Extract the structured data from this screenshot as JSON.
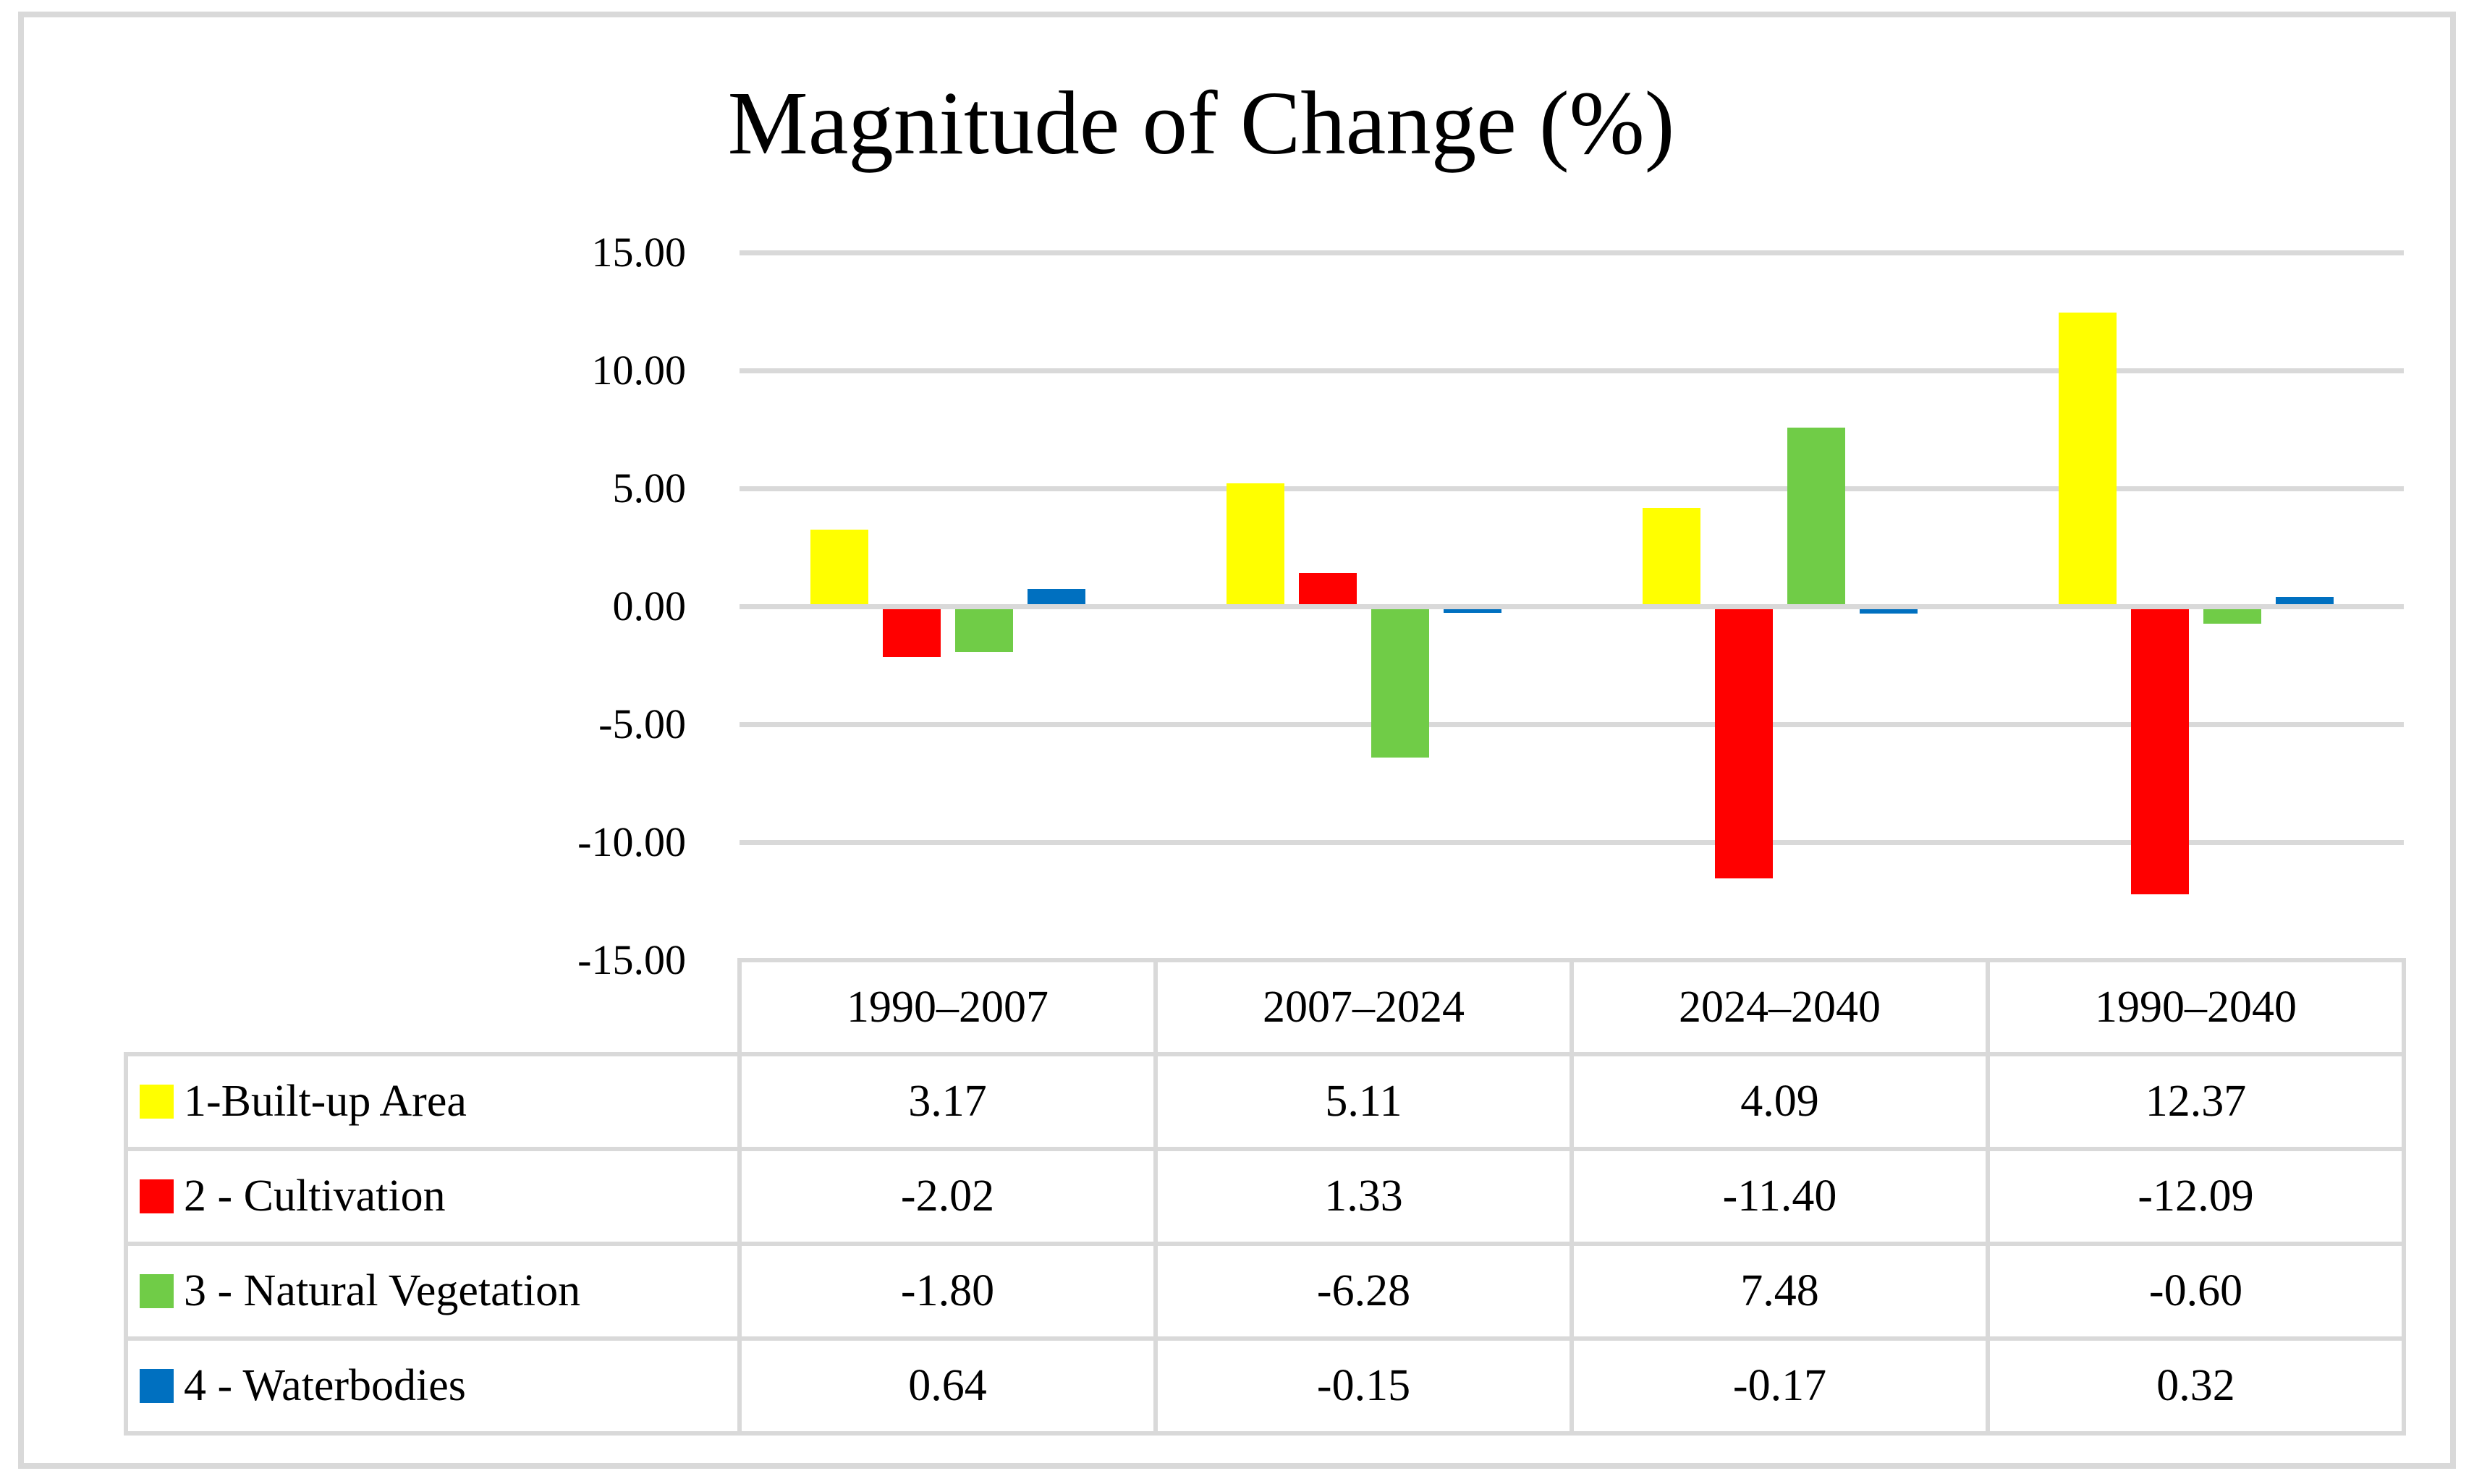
{
  "title": "Magnitude of Change (%)",
  "y_axis": {
    "ticks": [
      "15.00",
      "10.00",
      "5.00",
      "0.00",
      "-5.00",
      "-10.00",
      "-15.00"
    ]
  },
  "chart_data": {
    "type": "bar",
    "title": "Magnitude of Change (%)",
    "categories": [
      "1990–2007",
      "2007–2024",
      "2024–2040",
      "1990–2040"
    ],
    "series": [
      {
        "name": "1-Built-up Area",
        "color": "#FFFF00",
        "values": [
          3.17,
          5.11,
          4.09,
          12.37
        ]
      },
      {
        "name": "2 - Cultivation",
        "color": "#FF0000",
        "values": [
          -2.02,
          1.33,
          -11.4,
          -12.09
        ]
      },
      {
        "name": "3 - Natural Vegetation",
        "color": "#70CC47",
        "values": [
          -1.8,
          -6.28,
          7.48,
          -0.6
        ]
      },
      {
        "name": "4 - Waterbodies",
        "color": "#0070C0",
        "values": [
          0.64,
          -0.15,
          -0.17,
          0.32
        ]
      }
    ],
    "ylabel": "",
    "xlabel": "",
    "ylim": [
      -15,
      15
    ],
    "ytick_step": 5,
    "grid": true,
    "gridline_color": "#D9D9D9",
    "legend_position": "table-left"
  },
  "table": {
    "headers": [
      "1990–2007",
      "2007–2024",
      "2024–2040",
      "1990–2040"
    ],
    "rows": [
      {
        "label": "1-Built-up Area",
        "swatch": "#FFFF00",
        "values": [
          "3.17",
          "5.11",
          "4.09",
          "12.37"
        ]
      },
      {
        "label": "2 - Cultivation",
        "swatch": "#FF0000",
        "values": [
          "-2.02",
          "1.33",
          "-11.40",
          "-12.09"
        ]
      },
      {
        "label": "3 - Natural Vegetation",
        "swatch": "#70CC47",
        "values": [
          "-1.80",
          "-6.28",
          "7.48",
          "-0.60"
        ]
      },
      {
        "label": "4 - Waterbodies",
        "swatch": "#0070C0",
        "values": [
          "0.64",
          "-0.15",
          "-0.17",
          "0.32"
        ]
      }
    ]
  }
}
